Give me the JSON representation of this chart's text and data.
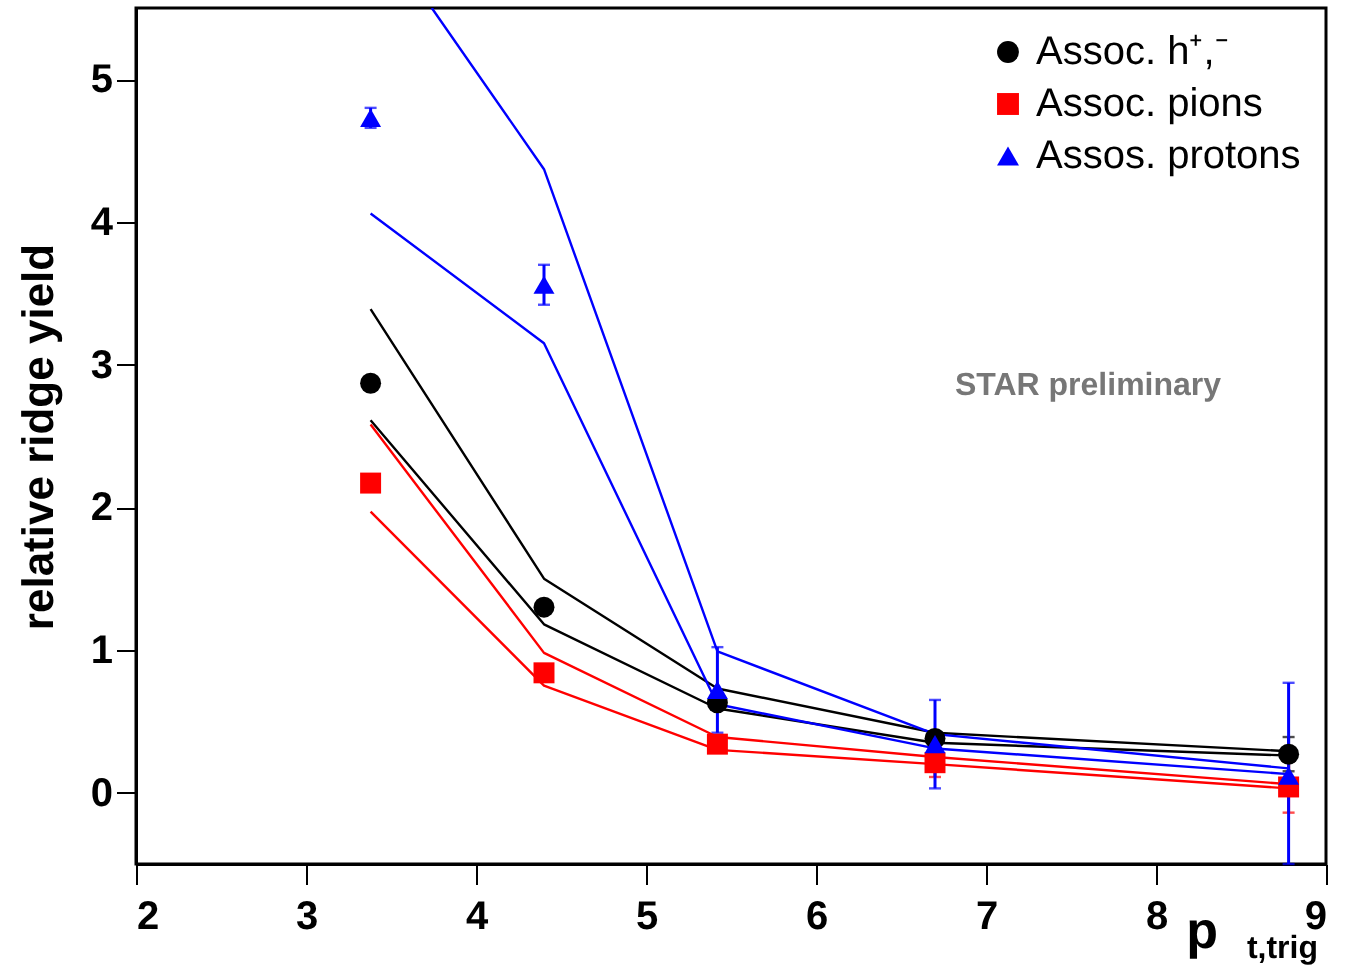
{
  "chart_data": {
    "type": "scatter",
    "xlabel": "p$_{t,trig}$",
    "ylabel": "relative ridge yield",
    "x": [
      3.38,
      4.4,
      5.42,
      6.7,
      8.78
    ],
    "xlim": [
      2,
      9
    ],
    "xticks": [
      2,
      3,
      4,
      5,
      6,
      7,
      8,
      9
    ],
    "ylim": [
      -0.5,
      5.5
    ],
    "yticks": [
      0,
      1,
      2,
      3,
      4,
      5
    ],
    "grid": false,
    "legend": "top right",
    "annotations": [
      "STAR preliminary"
    ],
    "series": [
      {
        "name": "Assoc. h⁺,⁻",
        "marker": "circle",
        "color": "#000000",
        "values": [
          2.87,
          1.3,
          0.63,
          0.38,
          0.27
        ],
        "errors": [
          null,
          null,
          0.05,
          0.03,
          0.12
        ]
      },
      {
        "name": "Assoc. pions",
        "marker": "square",
        "color": "#ff0000",
        "values": [
          2.17,
          0.84,
          0.34,
          0.21,
          0.04
        ],
        "errors": [
          null,
          0.04,
          0.06,
          0.1,
          0.18
        ]
      },
      {
        "name": "Assos. protons",
        "marker": "triangle",
        "color": "#0000ff",
        "values": [
          4.73,
          3.56,
          0.72,
          0.34,
          0.12
        ],
        "errors": [
          0.07,
          0.14,
          0.3,
          0.31,
          [
            -0.5,
            0.77
          ]
        ]
      },
      {
        "type": "line",
        "color": "#000000",
        "values": [
          3.39,
          1.5,
          0.73,
          0.42,
          0.29
        ]
      },
      {
        "type": "line",
        "color": "#000000",
        "values": [
          2.61,
          1.18,
          0.59,
          0.35,
          0.26
        ]
      },
      {
        "type": "line",
        "color": "#ff0000",
        "values": [
          2.58,
          0.98,
          0.39,
          0.25,
          0.06
        ]
      },
      {
        "type": "line",
        "color": "#ff0000",
        "values": [
          1.97,
          0.75,
          0.3,
          0.2,
          0.03
        ]
      },
      {
        "type": "line",
        "color": "#0000ff",
        "x": [
          3.74,
          4.4,
          5.42,
          6.7,
          8.78
        ],
        "values": [
          5.5,
          4.37,
          0.99,
          0.41,
          0.17
        ]
      },
      {
        "type": "line",
        "color": "#0000ff",
        "values": [
          4.06,
          3.15,
          0.62,
          0.31,
          0.13
        ]
      }
    ]
  }
}
